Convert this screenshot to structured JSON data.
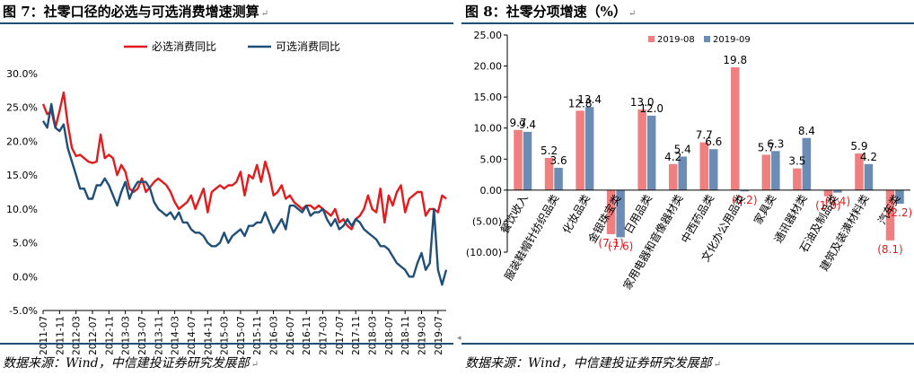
{
  "left": {
    "title": "图 7：社零口径的必选与可选消费增速测算",
    "title_tail": "↵",
    "source": "数据来源：Wind，中信建投证券研究发展部",
    "source_tail": "↵",
    "colors": {
      "series1": "#e41a1c",
      "series2": "#1f4e79"
    },
    "chart_data": {
      "type": "line",
      "legend_position": "top-center",
      "grid": false,
      "ylim": [
        -5,
        30
      ],
      "yticks": [
        "-5.0%",
        "0.0%",
        "5.0%",
        "10.0%",
        "15.0%",
        "20.0%",
        "25.0%",
        "30.0%"
      ],
      "xticks": [
        "2011-07",
        "2011-11",
        "2012-03",
        "2012-07",
        "2012-11",
        "2013-03",
        "2013-07",
        "2013-11",
        "2014-03",
        "2014-07",
        "2014-11",
        "2015-03",
        "2015-07",
        "2015-11",
        "2016-03",
        "2016-07",
        "2016-11",
        "2017-03",
        "2017-07",
        "2017-11",
        "2018-03",
        "2018-07",
        "2018-11",
        "2019-03",
        "2019-07"
      ],
      "x_start": "2011-07",
      "x_end": "2019-09",
      "series": [
        {
          "name": "必选消费同比",
          "values": [
            25.5,
            24.0,
            24.5,
            22.0,
            24.5,
            27.2,
            22.5,
            19.0,
            17.8,
            18.0,
            17.5,
            17.0,
            16.8,
            17.0,
            21.0,
            17.5,
            18.0,
            17.5,
            15.0,
            16.5,
            15.5,
            13.0,
            12.5,
            13.0,
            14.5,
            12.5,
            13.2,
            14.0,
            14.5,
            14.0,
            13.5,
            12.5,
            11.0,
            10.0,
            10.5,
            11.0,
            12.0,
            10.0,
            11.5,
            13.0,
            9.5,
            12.5,
            13.0,
            13.5,
            13.0,
            13.5,
            13.5,
            14.0,
            15.5,
            12.0,
            15.0,
            14.5,
            16.5,
            14.0,
            17.0,
            15.0,
            12.0,
            12.5,
            13.5,
            11.5,
            12.0,
            11.0,
            10.5,
            10.0,
            10.5,
            10.5,
            10.0,
            10.5,
            10.0,
            9.5,
            9.0,
            10.0,
            8.0,
            8.5,
            7.5,
            7.0,
            8.5,
            9.0,
            10.0,
            12.0,
            10.0,
            9.5,
            13.0,
            8.0,
            12.0,
            10.5,
            12.5,
            13.5,
            9.5,
            11.5,
            12.0,
            12.5,
            12.5,
            9.0,
            10.0,
            10.0,
            9.5,
            12.0,
            11.5
          ]
        },
        {
          "name": "可选消费同比",
          "values": [
            23.0,
            22.0,
            25.5,
            22.0,
            21.5,
            22.5,
            19.0,
            17.0,
            15.0,
            13.0,
            13.0,
            11.5,
            11.5,
            13.5,
            13.5,
            14.5,
            13.5,
            12.0,
            10.5,
            12.5,
            14.0,
            11.5,
            13.0,
            14.0,
            14.0,
            14.0,
            13.0,
            11.0,
            10.0,
            9.5,
            9.0,
            9.5,
            8.5,
            9.5,
            8.0,
            8.0,
            7.0,
            6.5,
            6.5,
            6.0,
            5.0,
            4.5,
            4.5,
            5.0,
            6.5,
            5.0,
            6.0,
            6.5,
            7.0,
            6.0,
            7.5,
            7.5,
            8.0,
            8.0,
            9.5,
            8.0,
            6.5,
            7.5,
            8.5,
            7.0,
            10.5,
            10.5,
            10.0,
            9.5,
            10.5,
            9.0,
            9.5,
            9.5,
            10.0,
            8.5,
            7.5,
            8.5,
            7.0,
            7.5,
            8.5,
            7.5,
            8.5,
            8.0,
            7.0,
            6.5,
            6.0,
            5.5,
            4.5,
            4.5,
            4.0,
            3.0,
            2.0,
            1.5,
            1.0,
            0.0,
            0.0,
            2.0,
            3.5,
            1.0,
            2.0,
            10.0,
            1.0,
            -1.2,
            1.0
          ]
        }
      ]
    }
  },
  "right": {
    "title": "图 8：社零分项增速（%）",
    "title_tail": "↵",
    "source": "数据来源：Wind，中信建投证券研究发展部",
    "source_tail": "↵",
    "colors": {
      "series1": "#f08080",
      "series2": "#6b8cb5",
      "negative_label": "#e41a1c"
    },
    "chart_data": {
      "type": "bar",
      "legend_position": "top-center",
      "grid": false,
      "ylim": [
        -10,
        25
      ],
      "yticks": [
        "(10.00)",
        "(5.00)",
        "0.00",
        "5.00",
        "10.00",
        "15.00",
        "20.00",
        "25.00"
      ],
      "categories": [
        "餐饮收入",
        "服装鞋帽针纺织品类",
        "化妆品类",
        "金银珠宝类",
        "日用品类",
        "家用电器和音像器材类",
        "中西药品类",
        "文化办公用品类",
        "家具类",
        "通讯器材类",
        "石油及制品类",
        "建筑及装潢材料类",
        "汽车类"
      ],
      "series": [
        {
          "name": "2019-08",
          "values": [
            9.7,
            5.2,
            12.8,
            -7.1,
            13.0,
            4.2,
            7.7,
            19.8,
            5.7,
            3.5,
            -1.0,
            5.9,
            -8.1
          ]
        },
        {
          "name": "2019-09",
          "values": [
            9.4,
            3.6,
            13.4,
            -7.6,
            12.0,
            5.4,
            6.6,
            -0.2,
            6.3,
            8.4,
            -0.4,
            4.2,
            -2.2
          ]
        }
      ],
      "data_labels": [
        {
          "category_index": 0,
          "series": 0,
          "text": "9.7"
        },
        {
          "category_index": 0,
          "series": 1,
          "text": "9.4"
        },
        {
          "category_index": 1,
          "series": 0,
          "text": "5.2"
        },
        {
          "category_index": 1,
          "series": 1,
          "text": "3.6"
        },
        {
          "category_index": 2,
          "series": 0,
          "text": "12.8"
        },
        {
          "category_index": 2,
          "series": 1,
          "text": "13.4"
        },
        {
          "category_index": 3,
          "series": 0,
          "text": "(7.1)"
        },
        {
          "category_index": 3,
          "series": 1,
          "text": "(7.6)"
        },
        {
          "category_index": 4,
          "series": 0,
          "text": "13.0"
        },
        {
          "category_index": 4,
          "series": 1,
          "text": "12.0"
        },
        {
          "category_index": 5,
          "series": 0,
          "text": "4.2"
        },
        {
          "category_index": 5,
          "series": 1,
          "text": "5.4"
        },
        {
          "category_index": 6,
          "series": 0,
          "text": "7.7"
        },
        {
          "category_index": 6,
          "series": 1,
          "text": "6.6"
        },
        {
          "category_index": 7,
          "series": 0,
          "text": "19.8"
        },
        {
          "category_index": 7,
          "series": 1,
          "text": "(0.2)"
        },
        {
          "category_index": 8,
          "series": 0,
          "text": "5.7"
        },
        {
          "category_index": 8,
          "series": 1,
          "text": "6.3"
        },
        {
          "category_index": 9,
          "series": 0,
          "text": "3.5"
        },
        {
          "category_index": 9,
          "series": 1,
          "text": "8.4"
        },
        {
          "category_index": 10,
          "series": 0,
          "text": "(1.0)"
        },
        {
          "category_index": 10,
          "series": 1,
          "text": "(0.4)"
        },
        {
          "category_index": 11,
          "series": 0,
          "text": "5.9"
        },
        {
          "category_index": 11,
          "series": 1,
          "text": "4.2"
        },
        {
          "category_index": 12,
          "series": 0,
          "text": "(8.1)"
        },
        {
          "category_index": 12,
          "series": 1,
          "text": "(2.2)"
        }
      ]
    }
  }
}
